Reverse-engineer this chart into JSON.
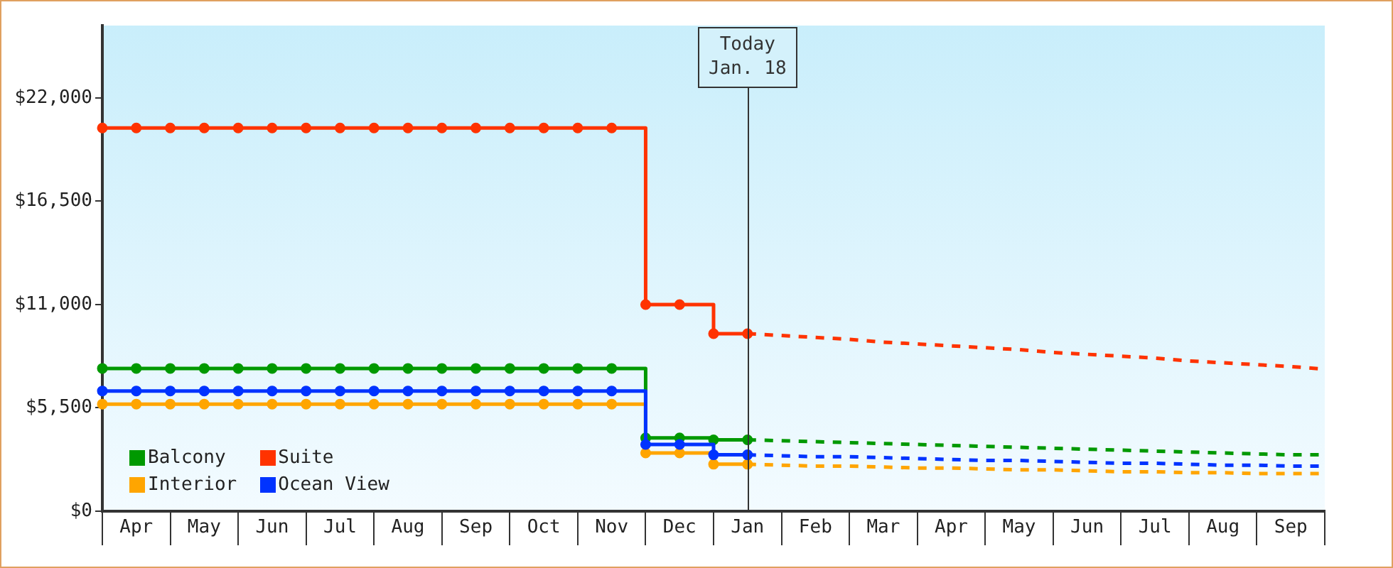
{
  "chart_data": {
    "type": "step",
    "categories": [
      null,
      "Apr",
      null,
      "May",
      null,
      "Jun",
      null,
      "Jul",
      null,
      "Aug",
      null,
      "Sep",
      null,
      "Oct",
      null,
      "Nov",
      null,
      "Dec",
      null,
      "Jan",
      null,
      "Feb",
      null,
      "Mar",
      null,
      "Apr",
      null,
      "May",
      null,
      "Jun",
      null,
      "Jul",
      null,
      "Aug",
      null,
      "Sep",
      null
    ],
    "ylim": [
      0,
      25850
    ],
    "yticks": [
      {
        "value": 0,
        "label": "$0"
      },
      {
        "value": 5500,
        "label": "$5,500"
      },
      {
        "value": 11000,
        "label": "$11,000"
      },
      {
        "value": 16500,
        "label": "$16,500"
      },
      {
        "value": 22000,
        "label": "$22,000"
      }
    ],
    "marker": "circle",
    "legend": "bottom left",
    "series": [
      {
        "name": "Balcony",
        "color": "#009900",
        "values": [
          7600,
          7600,
          7600,
          7600,
          7600,
          7600,
          7600,
          7600,
          7600,
          7600,
          7600,
          7600,
          7600,
          7600,
          7600,
          7600,
          3900,
          3900,
          3800,
          3800,
          null,
          null,
          null,
          null,
          null,
          null,
          null,
          null,
          null,
          null,
          null,
          null,
          null,
          null,
          null,
          null,
          null
        ]
      },
      {
        "name": "Suite",
        "color": "#ff3300",
        "values": [
          20400,
          20400,
          20400,
          20400,
          20400,
          20400,
          20400,
          20400,
          20400,
          20400,
          20400,
          20400,
          20400,
          20400,
          20400,
          20400,
          11000,
          11000,
          9450,
          9450,
          null,
          null,
          null,
          null,
          null,
          null,
          null,
          null,
          null,
          null,
          null,
          null,
          null,
          null,
          null,
          null,
          null
        ]
      },
      {
        "name": "Interior",
        "color": "#ffa500",
        "values": [
          5700,
          5700,
          5700,
          5700,
          5700,
          5700,
          5700,
          5700,
          5700,
          5700,
          5700,
          5700,
          5700,
          5700,
          5700,
          5700,
          3100,
          3100,
          2500,
          2500,
          null,
          null,
          null,
          null,
          null,
          null,
          null,
          null,
          null,
          null,
          null,
          null,
          null,
          null,
          null,
          null,
          null
        ]
      },
      {
        "name": "Ocean View",
        "color": "#0033ff",
        "values": [
          6400,
          6400,
          6400,
          6400,
          6400,
          6400,
          6400,
          6400,
          6400,
          6400,
          6400,
          6400,
          6400,
          6400,
          6400,
          6400,
          3550,
          3550,
          3000,
          3000,
          null,
          null,
          null,
          null,
          null,
          null,
          null,
          null,
          null,
          null,
          null,
          null,
          null,
          null,
          null,
          null,
          null
        ]
      },
      {
        "type": "line",
        "color": "#009900",
        "line_style": "dashed",
        "marker": "none",
        "values": [
          null,
          null,
          null,
          null,
          null,
          null,
          null,
          null,
          null,
          null,
          null,
          null,
          null,
          null,
          null,
          null,
          null,
          null,
          null,
          3800,
          3750,
          3700,
          3650,
          3600,
          3550,
          3500,
          3450,
          3400,
          3350,
          3300,
          3250,
          3200,
          3150,
          3100,
          3050,
          3000,
          3000
        ]
      },
      {
        "type": "line",
        "color": "#ff3300",
        "line_style": "dashed",
        "marker": "none",
        "values": [
          null,
          null,
          null,
          null,
          null,
          null,
          null,
          null,
          null,
          null,
          null,
          null,
          null,
          null,
          null,
          null,
          null,
          null,
          null,
          9450,
          9350,
          9250,
          9150,
          9000,
          8900,
          8800,
          8700,
          8600,
          8450,
          8350,
          8250,
          8150,
          8000,
          7900,
          7800,
          7700,
          7560
        ]
      },
      {
        "type": "line",
        "color": "#ffa500",
        "line_style": "dashed",
        "marker": "none",
        "values": [
          null,
          null,
          null,
          null,
          null,
          null,
          null,
          null,
          null,
          null,
          null,
          null,
          null,
          null,
          null,
          null,
          null,
          null,
          null,
          2500,
          2450,
          2400,
          2400,
          2350,
          2300,
          2300,
          2250,
          2200,
          2200,
          2150,
          2100,
          2100,
          2050,
          2050,
          2000,
          2000,
          2000
        ]
      },
      {
        "type": "line",
        "color": "#0033ff",
        "line_style": "dashed",
        "marker": "none",
        "values": [
          null,
          null,
          null,
          null,
          null,
          null,
          null,
          null,
          null,
          null,
          null,
          null,
          null,
          null,
          null,
          null,
          null,
          null,
          null,
          3000,
          2950,
          2900,
          2900,
          2850,
          2800,
          2750,
          2700,
          2700,
          2650,
          2600,
          2550,
          2550,
          2500,
          2450,
          2450,
          2400,
          2400
        ]
      }
    ],
    "ref_lines": [
      {
        "axis": "x",
        "value": "Jan",
        "label": "Today\nJan. 18",
        "color": "#333333"
      }
    ]
  }
}
